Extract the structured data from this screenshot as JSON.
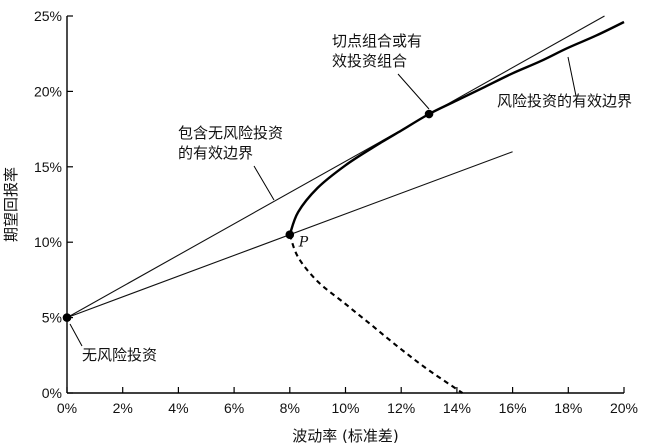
{
  "chart_data": {
    "type": "line",
    "xlabel": "波动率 (标准差)",
    "ylabel": "期望回报率",
    "xlim": [
      0,
      20
    ],
    "ylim": [
      0,
      25
    ],
    "x_ticks": [
      "0%",
      "2%",
      "4%",
      "6%",
      "8%",
      "10%",
      "12%",
      "14%",
      "16%",
      "18%",
      "20%"
    ],
    "y_ticks": [
      "0%",
      "5%",
      "10%",
      "15%",
      "20%",
      "25%"
    ],
    "lines": [
      {
        "x": [
          0,
          19.3
        ],
        "y": [
          5,
          25
        ]
      },
      {
        "x": [
          0,
          16
        ],
        "y": [
          5,
          16
        ]
      }
    ],
    "frontier_efficient": {
      "x": [
        8.0,
        8.3,
        9.0,
        10.0,
        11.0,
        12.0,
        13.0,
        14.0,
        15.0,
        16.0,
        17.0,
        18.0,
        19.0,
        20.0
      ],
      "y": [
        10.5,
        12.0,
        13.6,
        15.1,
        16.3,
        17.4,
        18.5,
        19.4,
        20.3,
        21.2,
        22.0,
        22.9,
        23.7,
        24.6
      ]
    },
    "frontier_inefficient": {
      "x": [
        8.0,
        8.3,
        9.0,
        10.0,
        11.0,
        12.0,
        13.0,
        14.2
      ],
      "y": [
        10.5,
        9.0,
        7.4,
        5.9,
        4.4,
        2.9,
        1.5,
        0.0
      ]
    },
    "points": [
      {
        "label": "",
        "x": 0,
        "y": 5
      },
      {
        "label": "P",
        "x": 8,
        "y": 10.5
      },
      {
        "label": "",
        "x": 13,
        "y": 18.5
      }
    ],
    "annotations": [
      {
        "text": [
          "切点组合或有",
          "效投资组合"
        ]
      },
      {
        "text": [
          "风险投资的有效边界"
        ]
      },
      {
        "text": [
          "包含无风险投资",
          "的有效边界"
        ]
      },
      {
        "text": [
          "无风险投资"
        ]
      }
    ]
  }
}
